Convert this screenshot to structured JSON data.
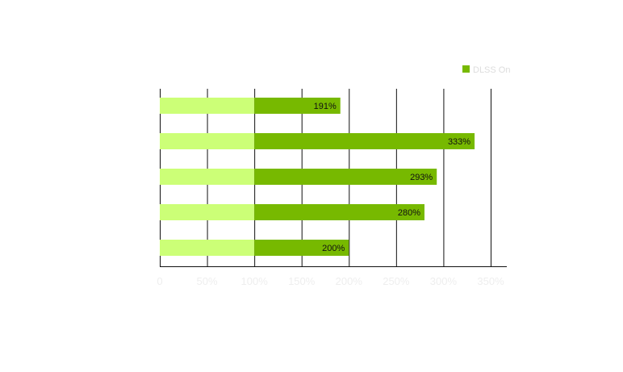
{
  "chart_data": {
    "type": "bar",
    "orientation": "horizontal",
    "stacked": true,
    "title": "",
    "xlabel": "",
    "ylabel": "",
    "xlim": [
      0,
      350
    ],
    "x_ticks": [
      0,
      50,
      100,
      150,
      200,
      250,
      300,
      350
    ],
    "tick_labels": [
      "0",
      "50%",
      "100%",
      "150%",
      "200%",
      "250%",
      "300%",
      "350%"
    ],
    "grid": true,
    "categories": [
      "",
      "",
      "",
      "",
      ""
    ],
    "baseline": {
      "values": [
        100,
        100,
        100,
        100,
        100
      ],
      "color": "#ccff77"
    },
    "series": [
      {
        "name": "DLSS On",
        "totals": [
          191,
          333,
          293,
          280,
          200
        ],
        "labels": [
          "191%",
          "333%",
          "293%",
          "280%",
          "200%"
        ],
        "color": "#77b900"
      }
    ],
    "legend": {
      "position": "top-right"
    },
    "colors": {
      "grid": "#111111",
      "tick_text": "#eeeeee",
      "legend_text": "#dddddd"
    }
  }
}
